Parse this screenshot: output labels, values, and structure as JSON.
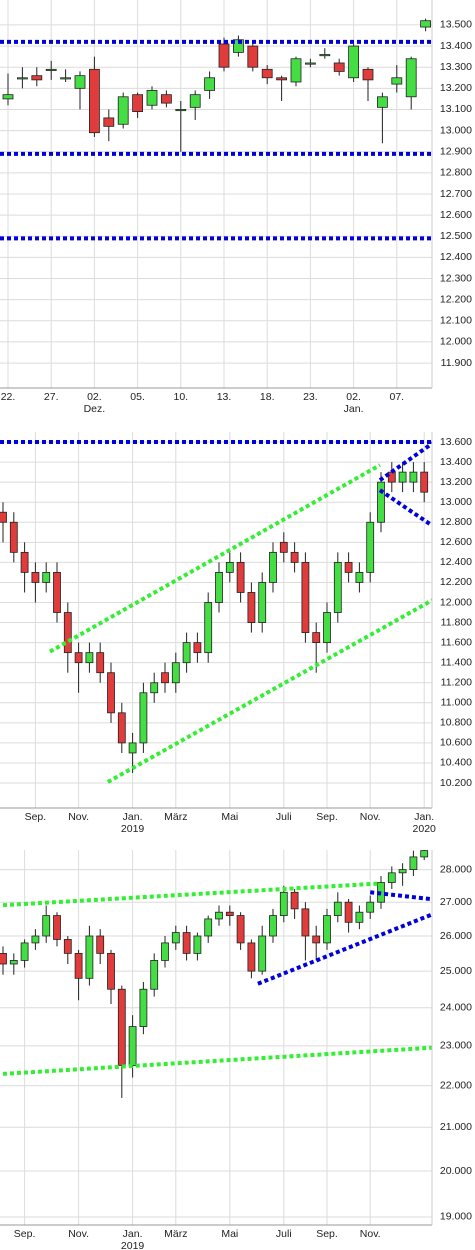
{
  "chart_data": [
    {
      "type": "candlestick",
      "up_color": "#44dd44",
      "down_color": "#e03c3c",
      "categories": [
        "22.",
        null,
        null,
        "27.",
        null,
        null,
        "02.",
        null,
        null,
        "05.",
        null,
        null,
        "10.",
        null,
        null,
        "13.",
        null,
        null,
        "18.",
        null,
        null,
        "23.",
        null,
        null,
        "02.",
        null,
        null,
        "07.",
        null,
        null
      ],
      "category_sublabels": [
        null,
        null,
        null,
        null,
        null,
        null,
        "Dez.",
        null,
        null,
        null,
        null,
        null,
        null,
        null,
        null,
        null,
        null,
        null,
        null,
        null,
        null,
        null,
        null,
        null,
        "Jan.",
        null,
        null,
        null,
        null,
        null
      ],
      "open": [
        13.15,
        13.25,
        13.26,
        13.29,
        13.25,
        13.2,
        13.29,
        13.06,
        13.03,
        13.17,
        13.12,
        13.17,
        13.1,
        13.11,
        13.19,
        13.41,
        13.37,
        13.4,
        13.29,
        13.25,
        13.23,
        13.32,
        13.36,
        13.32,
        13.25,
        13.29,
        13.11,
        13.22,
        13.16,
        13.49
      ],
      "high": [
        13.27,
        13.3,
        13.3,
        13.33,
        13.29,
        13.28,
        13.35,
        13.1,
        13.18,
        13.18,
        13.21,
        13.19,
        13.14,
        13.19,
        13.28,
        13.44,
        13.45,
        13.42,
        13.31,
        13.26,
        13.35,
        13.34,
        13.39,
        13.34,
        13.41,
        13.3,
        13.18,
        13.31,
        13.35,
        13.53
      ],
      "low": [
        13.12,
        13.2,
        13.21,
        13.24,
        13.23,
        13.1,
        12.97,
        12.95,
        13.01,
        13.06,
        13.1,
        13.11,
        12.9,
        13.05,
        13.15,
        13.28,
        13.35,
        13.28,
        13.22,
        13.14,
        13.21,
        13.3,
        13.34,
        13.26,
        13.23,
        13.14,
        12.94,
        13.18,
        13.1,
        13.47
      ],
      "close": [
        13.17,
        13.25,
        13.24,
        13.29,
        13.25,
        13.26,
        12.99,
        13.02,
        13.16,
        13.09,
        13.19,
        13.13,
        13.1,
        13.17,
        13.25,
        13.3,
        13.43,
        13.3,
        13.25,
        13.24,
        13.34,
        13.32,
        13.36,
        13.28,
        13.4,
        13.24,
        13.16,
        13.25,
        13.34,
        13.52
      ],
      "ylim": [
        11.782,
        13.618
      ],
      "yticks": [
        {
          "value": 11.9,
          "label": "11.900"
        },
        {
          "value": 12.0,
          "label": "12.000"
        },
        {
          "value": 12.1,
          "label": "12.100"
        },
        {
          "value": 12.2,
          "label": "12.200"
        },
        {
          "value": 12.3,
          "label": "12.300"
        },
        {
          "value": 12.4,
          "label": "12.400"
        },
        {
          "value": 12.5,
          "label": "12.500"
        },
        {
          "value": 12.6,
          "label": "12.600"
        },
        {
          "value": 12.7,
          "label": "12.700"
        },
        {
          "value": 12.8,
          "label": "12.800"
        },
        {
          "value": 12.9,
          "label": "12.900"
        },
        {
          "value": 13.0,
          "label": "13.000"
        },
        {
          "value": 13.1,
          "label": "13.100"
        },
        {
          "value": 13.2,
          "label": "13.200"
        },
        {
          "value": 13.3,
          "label": "13.300"
        },
        {
          "value": 13.4,
          "label": "13.400"
        },
        {
          "value": 13.5,
          "label": "13.500"
        }
      ],
      "hlines": [
        {
          "value": 13.42,
          "color": "#0000dd"
        },
        {
          "value": 12.89,
          "color": "#0000dd"
        },
        {
          "value": 12.49,
          "color": "#0000dd"
        }
      ],
      "trendlines": [],
      "grid": true,
      "log_scale": false
    },
    {
      "type": "candlestick",
      "up_color": "#44dd44",
      "down_color": "#e03c3c",
      "categories": [
        null,
        null,
        null,
        "Sep.",
        null,
        null,
        null,
        "Nov.",
        null,
        null,
        null,
        null,
        "Jan.",
        null,
        null,
        null,
        "März",
        null,
        null,
        null,
        null,
        "Mai",
        null,
        null,
        null,
        null,
        "Juli",
        null,
        null,
        null,
        "Sep.",
        null,
        null,
        null,
        "Nov.",
        null,
        null,
        null,
        null,
        "Jan."
      ],
      "category_sublabels": [
        null,
        null,
        null,
        null,
        null,
        null,
        null,
        null,
        null,
        null,
        null,
        null,
        "2019",
        null,
        null,
        null,
        null,
        null,
        null,
        null,
        null,
        null,
        null,
        null,
        null,
        null,
        null,
        null,
        null,
        null,
        null,
        null,
        null,
        null,
        null,
        null,
        null,
        null,
        null,
        "2020"
      ],
      "open": [
        12.9,
        12.8,
        12.5,
        12.3,
        12.2,
        12.3,
        11.9,
        11.5,
        11.4,
        11.5,
        11.3,
        10.9,
        10.5,
        10.6,
        11.1,
        11.3,
        11.2,
        11.4,
        11.6,
        11.5,
        12.0,
        12.3,
        12.4,
        12.1,
        11.8,
        12.2,
        12.6,
        12.5,
        12.4,
        11.7,
        11.6,
        11.9,
        12.4,
        12.2,
        12.3,
        12.8,
        13.3,
        13.2,
        13.2,
        13.3
      ],
      "high": [
        13.0,
        12.9,
        12.6,
        12.4,
        12.4,
        12.4,
        12.0,
        11.6,
        11.6,
        11.6,
        11.4,
        11.0,
        10.7,
        11.2,
        11.3,
        11.4,
        11.5,
        11.7,
        11.7,
        12.1,
        12.4,
        12.5,
        12.5,
        12.2,
        12.3,
        12.6,
        12.7,
        12.6,
        12.5,
        11.8,
        12.0,
        12.5,
        12.5,
        12.4,
        12.9,
        13.3,
        13.4,
        13.4,
        13.4,
        13.4
      ],
      "low": [
        12.6,
        12.4,
        12.1,
        12.0,
        12.1,
        11.8,
        11.3,
        11.1,
        11.3,
        11.2,
        10.8,
        10.5,
        10.3,
        10.5,
        11.0,
        11.1,
        11.1,
        11.3,
        11.4,
        11.4,
        11.9,
        12.2,
        12.0,
        11.7,
        11.7,
        12.1,
        12.4,
        12.3,
        11.6,
        11.3,
        11.5,
        11.8,
        12.2,
        12.1,
        12.2,
        12.7,
        13.1,
        13.1,
        13.1,
        13.0
      ],
      "close": [
        12.8,
        12.5,
        12.3,
        12.2,
        12.3,
        11.9,
        11.5,
        11.4,
        11.5,
        11.3,
        10.9,
        10.6,
        10.6,
        11.1,
        11.2,
        11.2,
        11.4,
        11.6,
        11.5,
        12.0,
        12.3,
        12.4,
        12.1,
        11.8,
        12.2,
        12.5,
        12.5,
        12.4,
        11.7,
        11.6,
        11.9,
        12.4,
        12.3,
        12.3,
        12.8,
        13.2,
        13.2,
        13.3,
        13.3,
        13.1
      ],
      "ylim": [
        9.951,
        13.7
      ],
      "yticks": [
        {
          "value": 10.2,
          "label": "10.200"
        },
        {
          "value": 10.4,
          "label": "10.400"
        },
        {
          "value": 10.6,
          "label": "10.600"
        },
        {
          "value": 10.8,
          "label": "10.800"
        },
        {
          "value": 11.0,
          "label": "11.000"
        },
        {
          "value": 11.2,
          "label": "11.200"
        },
        {
          "value": 11.4,
          "label": "11.400"
        },
        {
          "value": 11.6,
          "label": "11.600"
        },
        {
          "value": 11.8,
          "label": "11.800"
        },
        {
          "value": 12.0,
          "label": "12.000"
        },
        {
          "value": 12.2,
          "label": "12.200"
        },
        {
          "value": 12.4,
          "label": "12.400"
        },
        {
          "value": 12.6,
          "label": "12.600"
        },
        {
          "value": 12.8,
          "label": "12.800"
        },
        {
          "value": 13.0,
          "label": "13.000"
        },
        {
          "value": 13.2,
          "label": "13.200"
        },
        {
          "value": 13.4,
          "label": "13.400"
        },
        {
          "value": 13.6,
          "label": "13.600"
        }
      ],
      "hlines": [
        {
          "value": 13.6,
          "color": "#0000dd"
        }
      ],
      "trendlines": [
        {
          "color": "#33ee33",
          "x": [
            4.35,
            34.9
          ],
          "y": [
            11.51,
            13.37
          ]
        },
        {
          "color": "#33ee33",
          "x": [
            9.7,
            40.2
          ],
          "y": [
            10.21,
            12.05
          ]
        },
        {
          "color": "#0000dd",
          "x": [
            34.9,
            40.2
          ],
          "y": [
            13.22,
            13.62
          ]
        },
        {
          "color": "#0000dd",
          "x": [
            34.9,
            39.7
          ],
          "y": [
            13.12,
            12.77
          ]
        }
      ],
      "grid": true,
      "log_scale": false
    },
    {
      "type": "candlestick",
      "up_color": "#44dd44",
      "down_color": "#e03c3c",
      "categories": [
        null,
        null,
        "Sep.",
        null,
        null,
        null,
        null,
        "Nov.",
        null,
        null,
        null,
        null,
        "Jan.",
        null,
        null,
        null,
        "März",
        null,
        null,
        null,
        null,
        "Mai",
        null,
        null,
        null,
        null,
        "Juli",
        null,
        null,
        null,
        "Sep.",
        null,
        null,
        null,
        "Nov.",
        null,
        null,
        null,
        null,
        null
      ],
      "category_sublabels": [
        null,
        null,
        null,
        null,
        null,
        null,
        null,
        null,
        null,
        null,
        null,
        null,
        "2019",
        null,
        null,
        null,
        null,
        null,
        null,
        null,
        null,
        null,
        null,
        null,
        null,
        null,
        null,
        null,
        null,
        null,
        null,
        null,
        null,
        null,
        null,
        null,
        null,
        null,
        null,
        null
      ],
      "open": [
        25.5,
        25.2,
        25.3,
        25.8,
        26.0,
        26.6,
        25.9,
        25.5,
        24.8,
        26.0,
        25.5,
        24.5,
        22.5,
        23.5,
        24.5,
        25.3,
        25.8,
        26.1,
        25.5,
        26.0,
        26.5,
        26.7,
        26.6,
        25.8,
        25.0,
        26.0,
        26.6,
        27.3,
        26.8,
        26.0,
        25.8,
        26.6,
        27.0,
        26.4,
        26.7,
        27.0,
        27.6,
        27.9,
        28.0,
        28.4
      ],
      "high": [
        25.7,
        25.5,
        25.9,
        26.2,
        26.9,
        26.7,
        26.0,
        25.6,
        26.3,
        26.2,
        25.6,
        24.6,
        23.8,
        24.7,
        25.5,
        26.0,
        26.3,
        26.3,
        26.1,
        26.6,
        26.9,
        26.9,
        26.7,
        25.9,
        26.3,
        26.8,
        27.5,
        27.4,
        27.0,
        26.3,
        26.8,
        27.3,
        27.1,
        26.9,
        27.2,
        27.8,
        28.1,
        28.2,
        28.6,
        28.7
      ],
      "low": [
        24.9,
        24.9,
        25.1,
        25.6,
        25.8,
        25.7,
        25.2,
        24.2,
        24.6,
        25.2,
        24.1,
        21.7,
        22.2,
        23.3,
        24.3,
        25.1,
        25.6,
        25.3,
        25.3,
        25.8,
        26.3,
        26.3,
        25.6,
        24.8,
        24.9,
        25.8,
        26.4,
        26.5,
        25.3,
        25.3,
        25.6,
        26.4,
        26.1,
        26.2,
        26.5,
        26.8,
        27.4,
        27.5,
        27.8,
        28.3
      ],
      "close": [
        25.2,
        25.3,
        25.8,
        26.0,
        26.6,
        25.9,
        25.5,
        24.8,
        26.0,
        25.5,
        24.5,
        22.5,
        23.5,
        24.5,
        25.3,
        25.8,
        26.1,
        25.5,
        26.0,
        26.5,
        26.7,
        26.6,
        25.8,
        25.0,
        26.0,
        26.6,
        27.3,
        26.8,
        26.0,
        25.8,
        26.6,
        27.0,
        26.4,
        26.7,
        27.0,
        27.6,
        27.9,
        28.0,
        28.4,
        28.6
      ],
      "ylim": [
        18.83,
        28.62
      ],
      "yticks": [
        {
          "value": 19,
          "label": "19.000"
        },
        {
          "value": 20,
          "label": "20.000"
        },
        {
          "value": 21,
          "label": "21.000"
        },
        {
          "value": 22,
          "label": "22.000"
        },
        {
          "value": 23,
          "label": "23.000"
        },
        {
          "value": 24,
          "label": "24.000"
        },
        {
          "value": 25,
          "label": "25.000"
        },
        {
          "value": 26,
          "label": "26.000"
        },
        {
          "value": 27,
          "label": "27.000"
        },
        {
          "value": 28,
          "label": "28.000"
        }
      ],
      "hlines": [],
      "trendlines": [
        {
          "color": "#33ee33",
          "x": [
            0,
            34.9
          ],
          "y": [
            26.91,
            27.57
          ]
        },
        {
          "color": "#33ee33",
          "x": [
            0,
            40.2
          ],
          "y": [
            22.29,
            22.96
          ]
        },
        {
          "color": "#0000dd",
          "x": [
            23.6,
            39.7
          ],
          "y": [
            24.65,
            26.63
          ]
        },
        {
          "color": "#0000dd",
          "x": [
            34,
            39.7
          ],
          "y": [
            27.3,
            27.09
          ]
        }
      ],
      "grid": true,
      "log_scale": true
    }
  ]
}
